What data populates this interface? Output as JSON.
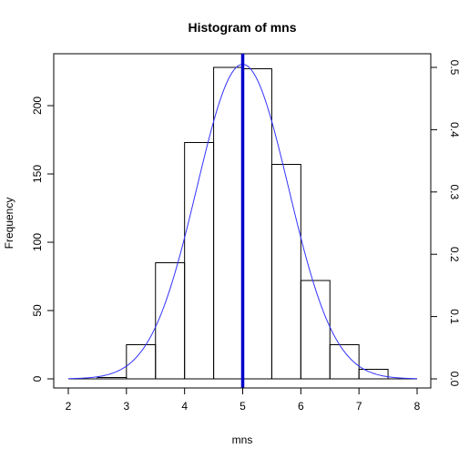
{
  "chart_data": {
    "type": "bar",
    "title": "Histogram of mns",
    "xlabel": "mns",
    "ylabel": "Frequency",
    "xlim": [
      2,
      8
    ],
    "ylim": [
      0,
      230
    ],
    "y2lim": [
      0,
      0.5
    ],
    "x_ticks": [
      2,
      3,
      4,
      5,
      6,
      7,
      8
    ],
    "y_ticks": [
      0,
      50,
      100,
      150,
      200
    ],
    "y2_ticks": [
      0.0,
      0.1,
      0.2,
      0.3,
      0.4,
      0.5
    ],
    "bins": [
      {
        "start": 2.5,
        "end": 3.0,
        "count": 1
      },
      {
        "start": 3.0,
        "end": 3.5,
        "count": 25
      },
      {
        "start": 3.5,
        "end": 4.0,
        "count": 85
      },
      {
        "start": 4.0,
        "end": 4.5,
        "count": 173
      },
      {
        "start": 4.5,
        "end": 5.0,
        "count": 228
      },
      {
        "start": 5.0,
        "end": 5.5,
        "count": 227
      },
      {
        "start": 5.5,
        "end": 6.0,
        "count": 157
      },
      {
        "start": 6.0,
        "end": 6.5,
        "count": 72
      },
      {
        "start": 6.5,
        "end": 7.0,
        "count": 25
      },
      {
        "start": 7.0,
        "end": 7.5,
        "count": 7
      }
    ],
    "density_curve": {
      "type": "normal",
      "mean": 5,
      "sd": 0.79,
      "x_range": [
        2,
        8
      ],
      "color": "#3333ff"
    },
    "vline": {
      "x": 5,
      "color": "#0000cc"
    },
    "grid": false,
    "legend": "none"
  }
}
